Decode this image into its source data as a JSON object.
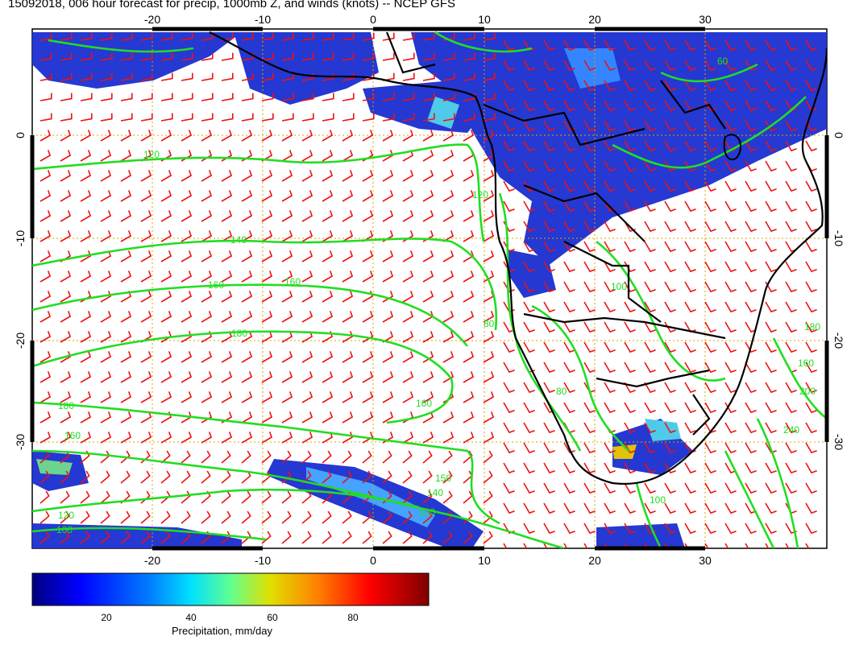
{
  "title": "15092018, 006 hour forecast for precip, 1000mb Z, and winds (knots) -- NCEP GFS",
  "map": {
    "lon_range": [
      -30,
      40
    ],
    "lat_range": [
      -40,
      10
    ],
    "lon_ticks": [
      "-20",
      "-10",
      "0",
      "10",
      "20",
      "30"
    ],
    "lat_ticks": [
      "0",
      "-10",
      "-20",
      "-30"
    ],
    "gridlines": "dotted-orange",
    "contour_color": "#22dd22",
    "wind_barb_color": "#ee1111",
    "coastline_color": "#000000",
    "contour_labels": [
      "120",
      "120",
      "140",
      "160",
      "160",
      "180",
      "180",
      "160",
      "140",
      "120",
      "100",
      "120",
      "100",
      "80",
      "100",
      "80",
      "160",
      "200",
      "240",
      "180",
      "150",
      "160",
      "60"
    ]
  },
  "colorbar": {
    "label": "Precipitation, mm/day",
    "ticks": [
      "20",
      "40",
      "60",
      "80"
    ],
    "range": [
      0,
      100
    ],
    "colormap": [
      "#00007f",
      "#0000ff",
      "#0080ff",
      "#00ffff",
      "#80ff80",
      "#ffff00",
      "#ff8000",
      "#ff0000",
      "#7f0000"
    ]
  }
}
